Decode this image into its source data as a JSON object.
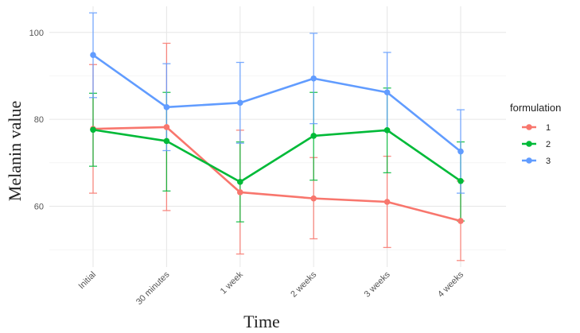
{
  "chart_data": {
    "type": "line",
    "title": "",
    "xlabel": "Time",
    "ylabel": "Melanin value",
    "categories": [
      "Initial",
      "30 minutes",
      "1 week",
      "2 weeks",
      "3 weeks",
      "4 weeks"
    ],
    "y_ticks": [
      60,
      80,
      100
    ],
    "ylim": [
      46,
      106
    ],
    "grid": true,
    "legend": {
      "title": "formulation",
      "position": "right"
    },
    "series": [
      {
        "name": "1",
        "color": "#f8766d",
        "values": [
          77.8,
          78.2,
          63.2,
          61.8,
          61.0,
          56.6
        ],
        "error_low": [
          63.0,
          59.0,
          49.0,
          52.5,
          50.5,
          47.5
        ],
        "error_high": [
          92.6,
          97.5,
          77.5,
          71.2,
          71.5,
          65.8
        ]
      },
      {
        "name": "2",
        "color": "#00ba38",
        "values": [
          77.6,
          75.0,
          65.6,
          76.2,
          77.5,
          65.8
        ],
        "error_low": [
          69.2,
          63.5,
          56.4,
          66.0,
          67.7,
          56.6
        ],
        "error_high": [
          86.0,
          86.2,
          74.8,
          86.2,
          87.2,
          74.8
        ]
      },
      {
        "name": "3",
        "color": "#619cff",
        "values": [
          94.8,
          82.8,
          83.8,
          89.4,
          86.2,
          72.6
        ],
        "error_low": [
          85.0,
          72.8,
          74.5,
          79.0,
          77.2,
          63.0
        ],
        "error_high": [
          104.5,
          92.8,
          93.1,
          99.8,
          95.4,
          82.2
        ]
      }
    ]
  }
}
